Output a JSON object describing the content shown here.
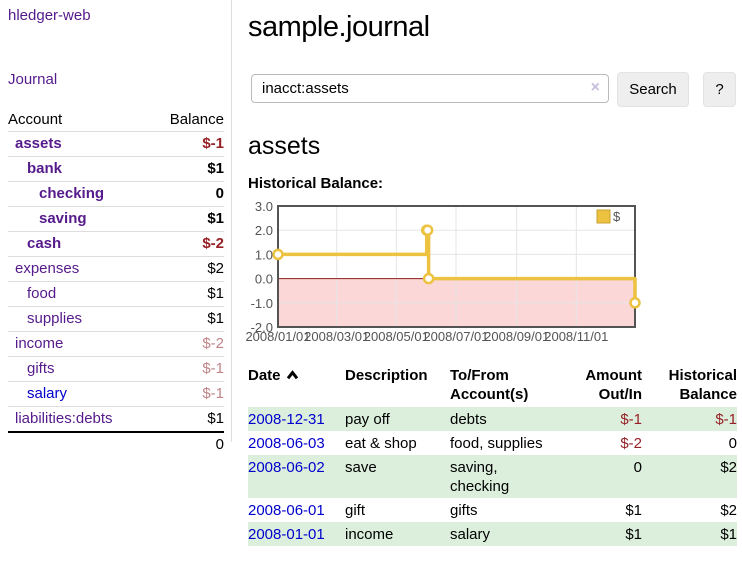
{
  "app_title": "hledger-web",
  "sidebar": {
    "journal_link": "Journal",
    "accounts": {
      "header": {
        "account": "Account",
        "balance": "Balance"
      },
      "rows": [
        {
          "name": "assets",
          "balance": "$-1",
          "indent": 1,
          "bold": true,
          "balance_style": "negative-strong",
          "link_style": "purple"
        },
        {
          "name": "bank",
          "balance": "$1",
          "indent": 2,
          "bold": true,
          "balance_style": "normal",
          "link_style": "purple"
        },
        {
          "name": "checking",
          "balance": "0",
          "indent": 3,
          "bold": true,
          "balance_style": "normal",
          "link_style": "purple"
        },
        {
          "name": "saving",
          "balance": "$1",
          "indent": 3,
          "bold": true,
          "balance_style": "normal",
          "link_style": "purple"
        },
        {
          "name": "cash",
          "balance": "$-2",
          "indent": 2,
          "bold": true,
          "balance_style": "negative-strong",
          "link_style": "purple"
        },
        {
          "name": "expenses",
          "balance": "$2",
          "indent": 1,
          "bold": false,
          "balance_style": "normal",
          "link_style": "purple"
        },
        {
          "name": "food",
          "balance": "$1",
          "indent": 2,
          "bold": false,
          "balance_style": "normal",
          "link_style": "purple"
        },
        {
          "name": "supplies",
          "balance": "$1",
          "indent": 2,
          "bold": false,
          "balance_style": "normal",
          "link_style": "purple"
        },
        {
          "name": "income",
          "balance": "$-2",
          "indent": 1,
          "bold": false,
          "balance_style": "negative-soft",
          "link_style": "purple"
        },
        {
          "name": "gifts",
          "balance": "$-1",
          "indent": 2,
          "bold": false,
          "balance_style": "negative-soft",
          "link_style": "purple"
        },
        {
          "name": "salary",
          "balance": "$-1",
          "indent": 2,
          "bold": false,
          "balance_style": "negative-soft",
          "link_style": "blue"
        },
        {
          "name": "liabilities:debts",
          "balance": "$1",
          "indent": 1,
          "bold": false,
          "balance_style": "normal",
          "link_style": "purple"
        }
      ],
      "total": "0"
    }
  },
  "main": {
    "page_title": "sample.journal",
    "search": {
      "value": "inacct:assets",
      "clear_icon": "×",
      "search_button": "Search",
      "help_button": "?"
    },
    "account_heading": "assets",
    "section_label": "Historical Balance:"
  },
  "chart_data": {
    "type": "line",
    "step": true,
    "title": "Historical Balance",
    "x_range": [
      "2008-01-01",
      "2008-12-31"
    ],
    "x_ticks": [
      "2008/01/01",
      "2008/03/01",
      "2008/05/01",
      "2008/07/01",
      "2008/09/01",
      "2008/11/01"
    ],
    "y_ticks": [
      3.0,
      2.0,
      1.0,
      0.0,
      -1.0,
      -2.0
    ],
    "ylim": [
      -2,
      3
    ],
    "grid": true,
    "legend": {
      "label": "$",
      "position": "top-right"
    },
    "series": [
      {
        "name": "$",
        "color": "#edc240",
        "points": [
          [
            "2008-01-01",
            1
          ],
          [
            "2008-06-01",
            2
          ],
          [
            "2008-06-02",
            2
          ],
          [
            "2008-06-03",
            0
          ],
          [
            "2008-12-31",
            -1
          ]
        ]
      }
    ],
    "colors": {
      "negative_region": "#fbd7d7",
      "zero_line": "#8b1a1a",
      "grid": "#e5e5e5",
      "border": "#545454",
      "tick_text": "#545454",
      "legend_box_border": "#c7a332"
    }
  },
  "register": {
    "headers": {
      "date": "Date",
      "sort": "ascending",
      "description": "Description",
      "account": "To/From Account(s)",
      "amount": "Amount Out/In",
      "balance": "Historical Balance"
    },
    "rows": [
      {
        "date": "2008-12-31",
        "description": "pay off",
        "accounts_lines": [
          "debts"
        ],
        "amount": "$-1",
        "amount_negative": true,
        "balance": "$-1",
        "balance_negative": true,
        "highlight": true
      },
      {
        "date": "2008-06-03",
        "description": "eat & shop",
        "accounts_lines": [
          "food, supplies"
        ],
        "amount": "$-2",
        "amount_negative": true,
        "balance": "0",
        "balance_negative": false,
        "highlight": false
      },
      {
        "date": "2008-06-02",
        "description": "save",
        "accounts_lines": [
          "saving,",
          "checking"
        ],
        "amount": "0",
        "amount_negative": false,
        "balance": "$2",
        "balance_negative": false,
        "highlight": true
      },
      {
        "date": "2008-06-01",
        "description": "gift",
        "accounts_lines": [
          "gifts"
        ],
        "amount": "$1",
        "amount_negative": false,
        "balance": "$2",
        "balance_negative": false,
        "highlight": false
      },
      {
        "date": "2008-01-01",
        "description": "income",
        "accounts_lines": [
          "salary"
        ],
        "amount": "$1",
        "amount_negative": false,
        "balance": "$1",
        "balance_negative": false,
        "highlight": true
      }
    ]
  }
}
